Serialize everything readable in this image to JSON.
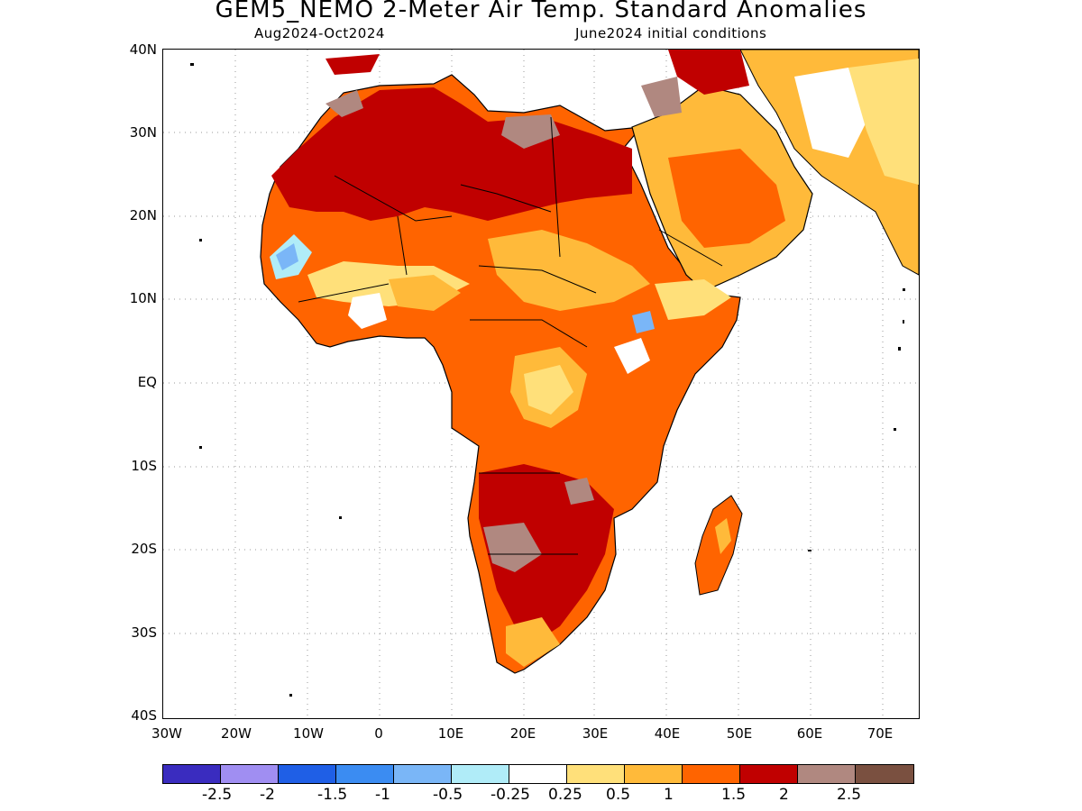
{
  "title": "GEM5_NEMO 2-Meter Air Temp. Standard Anomalies",
  "subtitle_left": "Aug2024-Oct2024",
  "subtitle_right": "June2024 initial conditions",
  "lat_labels": [
    "40N",
    "30N",
    "20N",
    "10N",
    "EQ",
    "10S",
    "20S",
    "30S",
    "40S"
  ],
  "lon_labels": [
    "30W",
    "20W",
    "10W",
    "0",
    "10E",
    "20E",
    "30E",
    "40E",
    "50E",
    "60E",
    "70E"
  ],
  "colorbar": {
    "colors": [
      "#3a2cbf",
      "#a08ef2",
      "#1f5fe6",
      "#3b8cf2",
      "#7ab6f7",
      "#b0ecf8",
      "#ffffff",
      "#ffe07a",
      "#ffba3a",
      "#ff6400",
      "#c00000",
      "#b08880",
      "#7a5040"
    ],
    "labels": [
      "-2.5",
      "-2",
      "-1.5",
      "-1",
      "-0.5",
      "-0.25",
      "0.25",
      "0.5",
      "1",
      "1.5",
      "2",
      "2.5"
    ]
  },
  "map": {
    "region": "Africa and Arabian Peninsula",
    "dominant_anomaly": "warm (1 to 2 std dev)",
    "colors": {
      "land_warm_strong": "#c00000",
      "land_warm_mid": "#ff6400",
      "land_warm_low": "#ffba3a",
      "land_warm_min": "#ffe07a",
      "extreme": "#b08880",
      "cool_light": "#7ab6f7",
      "cool_pale": "#b0ecf8"
    }
  }
}
